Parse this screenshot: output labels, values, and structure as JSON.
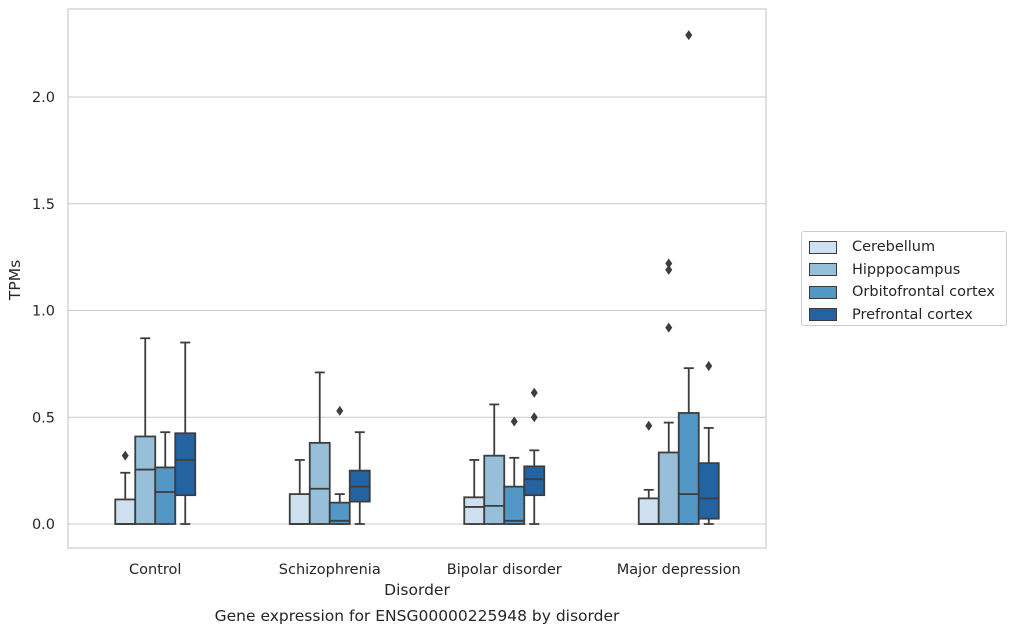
{
  "chart_data": {
    "type": "box",
    "title": "",
    "caption": "Gene expression for ENSG00000225948 by disorder",
    "xlabel": "Disorder",
    "ylabel": "TPMs",
    "ylim": [
      -0.11,
      2.4
    ],
    "yticks": [
      "0.0",
      "0.5",
      "1.0",
      "1.5",
      "2.0"
    ],
    "grid": "horizontal",
    "legend_position": "right",
    "categories": [
      "Control",
      "Schizophrenia",
      "Bipolar disorder",
      "Major depression"
    ],
    "series": [
      {
        "name": "Cerebellum",
        "color": "#cfe0f0",
        "boxes": [
          {
            "min": 0.0,
            "q1": 0.0,
            "median": 0.0,
            "q3": 0.115,
            "max": 0.24,
            "outliers": [
              0.32
            ]
          },
          {
            "min": 0.0,
            "q1": 0.0,
            "median": 0.0,
            "q3": 0.14,
            "max": 0.3,
            "outliers": []
          },
          {
            "min": 0.0,
            "q1": 0.0,
            "median": 0.08,
            "q3": 0.125,
            "max": 0.3,
            "outliers": []
          },
          {
            "min": 0.0,
            "q1": 0.0,
            "median": 0.0,
            "q3": 0.12,
            "max": 0.16,
            "outliers": [
              0.46
            ]
          }
        ]
      },
      {
        "name": "Hipppocampus",
        "color": "#97bfd9",
        "boxes": [
          {
            "min": 0.0,
            "q1": 0.0,
            "median": 0.255,
            "q3": 0.41,
            "max": 0.87,
            "outliers": []
          },
          {
            "min": 0.0,
            "q1": 0.0,
            "median": 0.165,
            "q3": 0.38,
            "max": 0.71,
            "outliers": []
          },
          {
            "min": 0.0,
            "q1": 0.0,
            "median": 0.085,
            "q3": 0.32,
            "max": 0.56,
            "outliers": []
          },
          {
            "min": 0.0,
            "q1": 0.0,
            "median": 0.0,
            "q3": 0.335,
            "max": 0.475,
            "outliers": [
              0.92,
              1.19,
              1.22
            ]
          }
        ]
      },
      {
        "name": "Orbitofrontal cortex",
        "color": "#5297c6",
        "boxes": [
          {
            "min": 0.0,
            "q1": 0.0,
            "median": 0.15,
            "q3": 0.265,
            "max": 0.43,
            "outliers": []
          },
          {
            "min": 0.0,
            "q1": 0.0,
            "median": 0.015,
            "q3": 0.1,
            "max": 0.14,
            "outliers": [
              0.53
            ]
          },
          {
            "min": 0.0,
            "q1": 0.0,
            "median": 0.015,
            "q3": 0.175,
            "max": 0.31,
            "outliers": [
              0.48
            ]
          },
          {
            "min": 0.0,
            "q1": 0.0,
            "median": 0.14,
            "q3": 0.52,
            "max": 0.73,
            "outliers": [
              2.29
            ]
          }
        ]
      },
      {
        "name": "Prefrontal cortex",
        "color": "#2463a2",
        "boxes": [
          {
            "min": 0.0,
            "q1": 0.135,
            "median": 0.3,
            "q3": 0.425,
            "max": 0.85,
            "outliers": []
          },
          {
            "min": 0.0,
            "q1": 0.105,
            "median": 0.175,
            "q3": 0.25,
            "max": 0.43,
            "outliers": []
          },
          {
            "min": 0.0,
            "q1": 0.135,
            "median": 0.21,
            "q3": 0.27,
            "max": 0.345,
            "outliers": [
              0.5,
              0.615
            ]
          },
          {
            "min": 0.0,
            "q1": 0.025,
            "median": 0.12,
            "q3": 0.285,
            "max": 0.45,
            "outliers": [
              0.74
            ]
          }
        ]
      }
    ]
  }
}
